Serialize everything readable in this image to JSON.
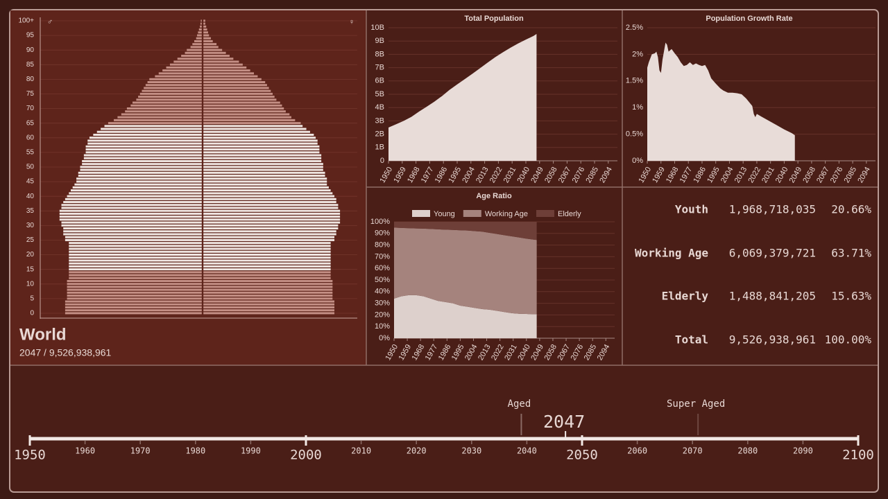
{
  "chart_data": [
    {
      "type": "pyramid",
      "y": [
        0,
        1,
        2,
        3,
        4,
        5,
        6,
        7,
        8,
        9,
        10,
        11,
        12,
        13,
        14,
        15,
        16,
        17,
        18,
        19,
        20,
        21,
        22,
        23,
        24,
        25,
        26,
        27,
        28,
        29,
        30,
        31,
        32,
        33,
        34,
        35,
        36,
        37,
        38,
        39,
        40,
        41,
        42,
        43,
        44,
        45,
        46,
        47,
        48,
        49,
        50,
        51,
        52,
        53,
        54,
        55,
        56,
        57,
        58,
        59,
        60,
        61,
        62,
        63,
        64,
        65,
        66,
        67,
        68,
        69,
        70,
        71,
        72,
        73,
        74,
        75,
        76,
        77,
        78,
        79,
        80,
        81,
        82,
        83,
        84,
        85,
        86,
        87,
        88,
        89,
        90,
        91,
        92,
        93,
        94,
        95,
        96,
        97,
        98,
        99,
        100
      ],
      "series": [
        {
          "name": "♂",
          "values": [
            73,
            73,
            73,
            73,
            73,
            72,
            72,
            72,
            72,
            72,
            72,
            72,
            71,
            71,
            71,
            71,
            71,
            71,
            71,
            71,
            71,
            71,
            71,
            71,
            71,
            73,
            73,
            74,
            74,
            74,
            75,
            75,
            76,
            76,
            76,
            76,
            75,
            75,
            74,
            73,
            72,
            71,
            70,
            69,
            68,
            67,
            67,
            66,
            66,
            65,
            65,
            64,
            64,
            63,
            63,
            62,
            62,
            62,
            61,
            61,
            60,
            58,
            56,
            54,
            52,
            50,
            47,
            45,
            43,
            41,
            40,
            38,
            37,
            35,
            34,
            33,
            32,
            31,
            30,
            29,
            28,
            25,
            23,
            21,
            19,
            17,
            15,
            13,
            11,
            9,
            8,
            6,
            5,
            4,
            3,
            2.5,
            2,
            1.5,
            1,
            0.7,
            0.5
          ]
        },
        {
          "name": "♀",
          "values": [
            70,
            70,
            70,
            70,
            70,
            69,
            69,
            69,
            69,
            69,
            69,
            69,
            68,
            68,
            68,
            68,
            68,
            68,
            68,
            68,
            68,
            68,
            68,
            68,
            68,
            70,
            70,
            71,
            71,
            72,
            72,
            73,
            73,
            73,
            73,
            73,
            72,
            72,
            71,
            71,
            70,
            69,
            68,
            67,
            66,
            66,
            66,
            65,
            65,
            64,
            64,
            64,
            63,
            63,
            63,
            62,
            62,
            62,
            61,
            61,
            60,
            59,
            57,
            55,
            53,
            52,
            49,
            47,
            46,
            44,
            43,
            42,
            41,
            39,
            38,
            37,
            36,
            35,
            34,
            33,
            31,
            29,
            27,
            25,
            23,
            21,
            19,
            16,
            14,
            12,
            10,
            8,
            7,
            5,
            4,
            3,
            2.5,
            2,
            1.5,
            1,
            1
          ]
        }
      ],
      "working_ages": [
        15,
        64
      ],
      "colors": {
        "working": "#f0e6e2",
        "other": "#c48f85"
      },
      "ylim": [
        0,
        100
      ],
      "yticks": [
        0,
        5,
        10,
        15,
        20,
        25,
        30,
        35,
        40,
        45,
        50,
        55,
        60,
        65,
        70,
        75,
        80,
        85,
        90,
        95,
        {
          "value": 100,
          "label": "100+"
        }
      ],
      "grid": true
    },
    {
      "type": "area",
      "title": "Total Population",
      "color": "#e8dcd8",
      "x": [
        1950,
        1955,
        1960,
        1965,
        1970,
        1975,
        1980,
        1985,
        1990,
        1995,
        2000,
        2005,
        2010,
        2015,
        2020,
        2025,
        2030,
        2035,
        2040,
        2045,
        2047
      ],
      "values": [
        2.5,
        2.75,
        3.0,
        3.3,
        3.7,
        4.06,
        4.44,
        4.86,
        5.33,
        5.74,
        6.14,
        6.54,
        6.96,
        7.38,
        7.79,
        8.16,
        8.5,
        8.82,
        9.11,
        9.38,
        9.53
      ],
      "xlim": [
        1950,
        2100
      ],
      "xticks": [
        1950,
        1959,
        1968,
        1977,
        1986,
        1995,
        2004,
        2013,
        2022,
        2031,
        2040,
        2049,
        2058,
        2067,
        2076,
        2085,
        2094
      ],
      "ylim": [
        0,
        10
      ],
      "yticks": [
        0,
        {
          "value": 1,
          "label": "1B"
        },
        {
          "value": 2,
          "label": "2B"
        },
        {
          "value": 3,
          "label": "3B"
        },
        {
          "value": 4,
          "label": "4B"
        },
        {
          "value": 5,
          "label": "5B"
        },
        {
          "value": 6,
          "label": "6B"
        },
        {
          "value": 7,
          "label": "7B"
        },
        {
          "value": 8,
          "label": "8B"
        },
        {
          "value": 9,
          "label": "9B"
        },
        {
          "value": 10,
          "label": "10B"
        }
      ],
      "grid": true
    },
    {
      "type": "area",
      "title": "Population Growth Rate",
      "color": "#e8dcd8",
      "x": [
        1950,
        1951,
        1953,
        1955,
        1956,
        1957,
        1958,
        1959,
        1960,
        1962,
        1963,
        1964,
        1966,
        1968,
        1970,
        1972,
        1974,
        1976,
        1978,
        1980,
        1982,
        1984,
        1986,
        1988,
        1990,
        1992,
        1995,
        1998,
        2000,
        2003,
        2006,
        2009,
        2012,
        2015,
        2017,
        2019,
        2020,
        2021,
        2022,
        2025,
        2030,
        2035,
        2040,
        2045,
        2047
      ],
      "values": [
        1.75,
        1.85,
        2.0,
        2.02,
        2.05,
        1.95,
        1.7,
        1.65,
        1.9,
        2.22,
        2.18,
        2.05,
        2.1,
        2.02,
        1.95,
        1.85,
        1.78,
        1.8,
        1.85,
        1.8,
        1.83,
        1.8,
        1.78,
        1.8,
        1.7,
        1.55,
        1.45,
        1.36,
        1.32,
        1.28,
        1.28,
        1.27,
        1.25,
        1.17,
        1.1,
        1.03,
        0.88,
        0.82,
        0.88,
        0.83,
        0.75,
        0.67,
        0.59,
        0.52,
        0.48
      ],
      "xlim": [
        1950,
        2100
      ],
      "xticks": [
        1950,
        1959,
        1968,
        1977,
        1986,
        1995,
        2004,
        2013,
        2022,
        2031,
        2040,
        2049,
        2058,
        2067,
        2076,
        2085,
        2094
      ],
      "ylim": [
        0,
        2.5
      ],
      "yticks": [
        {
          "value": 0,
          "label": "0%"
        },
        {
          "value": 0.5,
          "label": "0.5%"
        },
        {
          "value": 1,
          "label": "1%"
        },
        {
          "value": 1.5,
          "label": "1.5%"
        },
        {
          "value": 2,
          "label": "2%"
        },
        {
          "value": 2.5,
          "label": "2.5%"
        }
      ],
      "grid": true
    },
    {
      "type": "stacked_area",
      "title": "Age Ratio",
      "legend": "top",
      "x": [
        1950,
        1955,
        1960,
        1965,
        1970,
        1975,
        1980,
        1985,
        1990,
        1995,
        2000,
        2005,
        2010,
        2015,
        2020,
        2025,
        2030,
        2035,
        2040,
        2045,
        2047
      ],
      "series": [
        {
          "name": "Young",
          "color": "#ddd0cc",
          "values": [
            34,
            36,
            37,
            37,
            36,
            34,
            32,
            31,
            30,
            28,
            27,
            26,
            25,
            24.5,
            23.5,
            22.5,
            21.5,
            21,
            20.8,
            20.6,
            20.66
          ]
        },
        {
          "name": "Working Age",
          "color": "#a5837d",
          "values": [
            61,
            58.7,
            57.5,
            57.3,
            58.1,
            59.8,
            61.5,
            62.2,
            63,
            64.7,
            65.5,
            66,
            66.5,
            66,
            66,
            66,
            66,
            65.5,
            64.7,
            64.1,
            63.71
          ]
        },
        {
          "name": "Elderly",
          "color": "#6e3f38",
          "values": [
            5,
            5.3,
            5.5,
            5.7,
            5.9,
            6.2,
            6.5,
            6.8,
            7.0,
            7.3,
            7.5,
            8.0,
            8.5,
            9.5,
            10.5,
            11.5,
            12.5,
            13.5,
            14.5,
            15.3,
            15.63
          ]
        }
      ],
      "xlim": [
        1950,
        2100
      ],
      "xticks": [
        1950,
        1959,
        1968,
        1977,
        1986,
        1995,
        2004,
        2013,
        2022,
        2031,
        2040,
        2049,
        2058,
        2067,
        2076,
        2085,
        2094
      ],
      "ylim": [
        0,
        100
      ],
      "yticks": [
        {
          "value": 0,
          "label": "0%"
        },
        {
          "value": 10,
          "label": "10%"
        },
        {
          "value": 20,
          "label": "20%"
        },
        {
          "value": 30,
          "label": "30%"
        },
        {
          "value": 40,
          "label": "40%"
        },
        {
          "value": 50,
          "label": "50%"
        },
        {
          "value": 60,
          "label": "60%"
        },
        {
          "value": 70,
          "label": "70%"
        },
        {
          "value": 80,
          "label": "80%"
        },
        {
          "value": 90,
          "label": "90%"
        },
        {
          "value": 100,
          "label": "100%"
        }
      ],
      "grid": true
    },
    {
      "type": "timeline",
      "xlim": [
        1950,
        2100
      ],
      "xticks": [
        1950,
        1960,
        1970,
        1980,
        1990,
        2000,
        2010,
        2020,
        2030,
        2040,
        2050,
        2060,
        2070,
        2080,
        2090,
        2100
      ],
      "major_step": 50,
      "markers": [
        {
          "label": "Aged",
          "x": 2039,
          "active": true
        },
        {
          "label": "Super Aged",
          "x": 2071,
          "active": false
        }
      ],
      "current": 2047
    }
  ],
  "region": {
    "name": "World",
    "subtitle": "2047 / 9,526,938,961"
  },
  "stats": {
    "rows": [
      {
        "label": "Youth",
        "count": "1,968,718,035",
        "share": "20.66%"
      },
      {
        "label": "Working Age",
        "count": "6,069,379,721",
        "share": "63.71%"
      },
      {
        "label": "Elderly",
        "count": "1,488,841,205",
        "share": "15.63%"
      },
      {
        "label": "Total",
        "count": "9,526,938,961",
        "share": "100.00%"
      }
    ]
  }
}
